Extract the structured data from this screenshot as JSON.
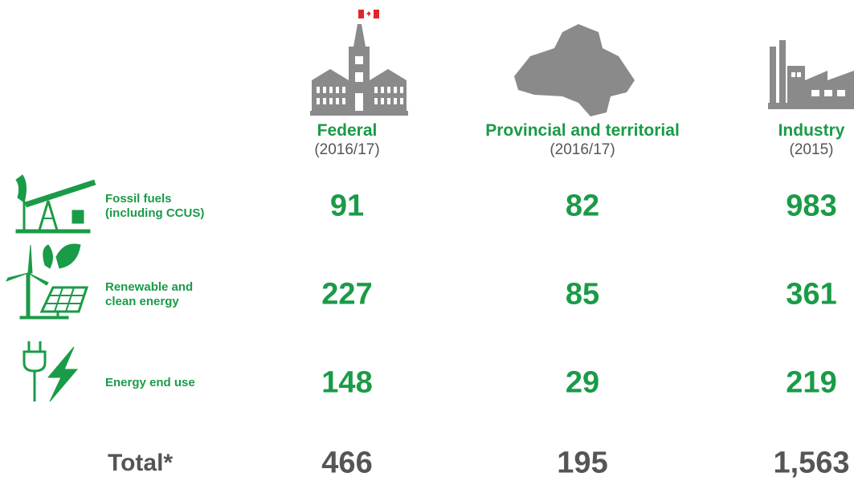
{
  "table": {
    "columns": [
      {
        "name": "Federal",
        "period": "(2016/17)"
      },
      {
        "name": "Provincial and territorial",
        "period": "(2016/17)"
      },
      {
        "name": "Industry",
        "period": "(2015)"
      }
    ],
    "rows": [
      {
        "label": "Fossil fuels (including CCUS)",
        "values": [
          "91",
          "82",
          "983"
        ]
      },
      {
        "label": "Renewable and clean energy",
        "values": [
          "227",
          "85",
          "361"
        ]
      },
      {
        "label": "Energy end use",
        "values": [
          "148",
          "29",
          "219"
        ]
      }
    ],
    "total": {
      "label": "Total*",
      "values": [
        "466",
        "195",
        "1,563"
      ]
    }
  }
}
